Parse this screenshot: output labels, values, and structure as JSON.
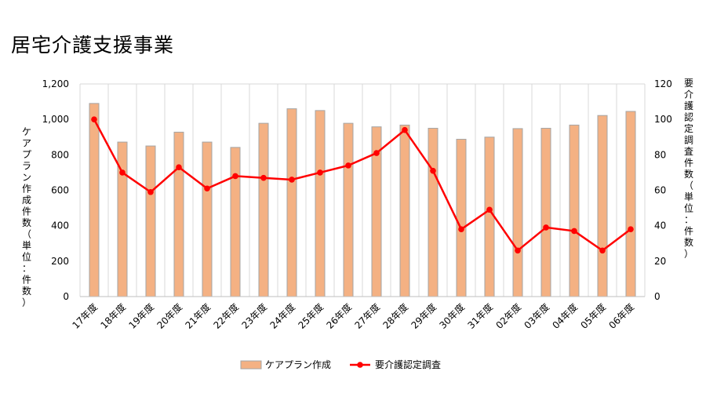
{
  "chart_data": {
    "type": "bar+line",
    "title": "居宅介護支援事業",
    "categories": [
      "17年度",
      "18年度",
      "19年度",
      "20年度",
      "21年度",
      "22年度",
      "23年度",
      "24年度",
      "25年度",
      "26年度",
      "27年度",
      "28年度",
      "29年度",
      "30年度",
      "31年度",
      "02年度",
      "03年度",
      "04年度",
      "05年度",
      "06年度"
    ],
    "series": [
      {
        "name": "ケアプラン作成",
        "type": "bar",
        "axis": "left",
        "color": "#F4B183",
        "border_color": "#A5A5A5",
        "values": [
          1090,
          872,
          850,
          928,
          872,
          842,
          978,
          1060,
          1050,
          978,
          958,
          968,
          950,
          888,
          900,
          948,
          950,
          968,
          1022,
          1045
        ]
      },
      {
        "name": "要介護認定調査",
        "type": "line",
        "axis": "right",
        "color": "#FF0000",
        "marker": "circle",
        "values": [
          100,
          70,
          59,
          73,
          61,
          68,
          67,
          66,
          70,
          74,
          81,
          94,
          71,
          38,
          49,
          26,
          39,
          37,
          26,
          38
        ]
      }
    ],
    "left_axis": {
      "label": "ケアプラン作成件数（単位：件数）",
      "ylim": [
        0,
        1200
      ],
      "ticks": [
        "0",
        "200",
        "400",
        "600",
        "800",
        "1,000",
        "1,200"
      ]
    },
    "right_axis": {
      "label": "要介護認定調査件数（単位：件数）",
      "ylim": [
        0,
        120
      ],
      "ticks": [
        "0",
        "20",
        "40",
        "60",
        "80",
        "100",
        "120"
      ]
    },
    "grid": "vertical",
    "legend_position": "bottom"
  }
}
